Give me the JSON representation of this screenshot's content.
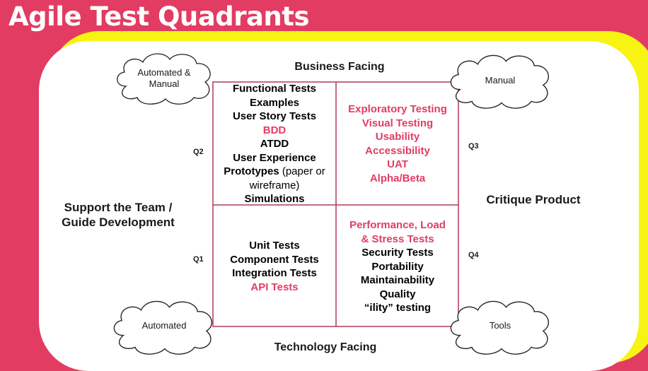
{
  "title": "Agile Test Quadrants",
  "axes": {
    "top": "Business Facing",
    "bottom": "Technology Facing",
    "left_line1": "Support the Team /",
    "left_line2": "Guide Development",
    "right": "Critique Product"
  },
  "quadrant_labels": {
    "q1": "Q1",
    "q2": "Q2",
    "q3": "Q3",
    "q4": "Q4"
  },
  "clouds": {
    "top_left_line1": "Automated &",
    "top_left_line2": "Manual",
    "top_right": "Manual",
    "bottom_left": "Automated",
    "bottom_right": "Tools"
  },
  "q2_items": {
    "functional_tests": "Functional Tests",
    "examples": "Examples",
    "user_story_tests": "User Story Tests",
    "bdd": "BDD",
    "atdd": "ATDD",
    "user_experience": "User Experience",
    "prototypes": "Prototypes",
    "prototypes_note": " (paper or",
    "wireframe_note": "wireframe)",
    "simulations": "Simulations"
  },
  "q3_items": {
    "exploratory": "Exploratory Testing",
    "visual": "Visual Testing",
    "usability": "Usability",
    "accessibility": "Accessibility",
    "uat": "UAT",
    "alpha_beta": "Alpha/Beta"
  },
  "q1_items": {
    "unit": "Unit Tests",
    "component": "Component Tests",
    "integration": "Integration Tests",
    "api": "API Tests"
  },
  "q4_items": {
    "performance_line1": "Performance, Load",
    "performance_line2": "& Stress Tests",
    "security": "Security Tests",
    "portability": "Portability",
    "maintainability": "Maintainability",
    "quality": "Quality",
    "ility": "“ility” testing"
  },
  "colors": {
    "background": "#e23c63",
    "accent_yellow": "#f7f313",
    "highlight_text": "#e23c63",
    "grid_line": "#b03a55"
  }
}
